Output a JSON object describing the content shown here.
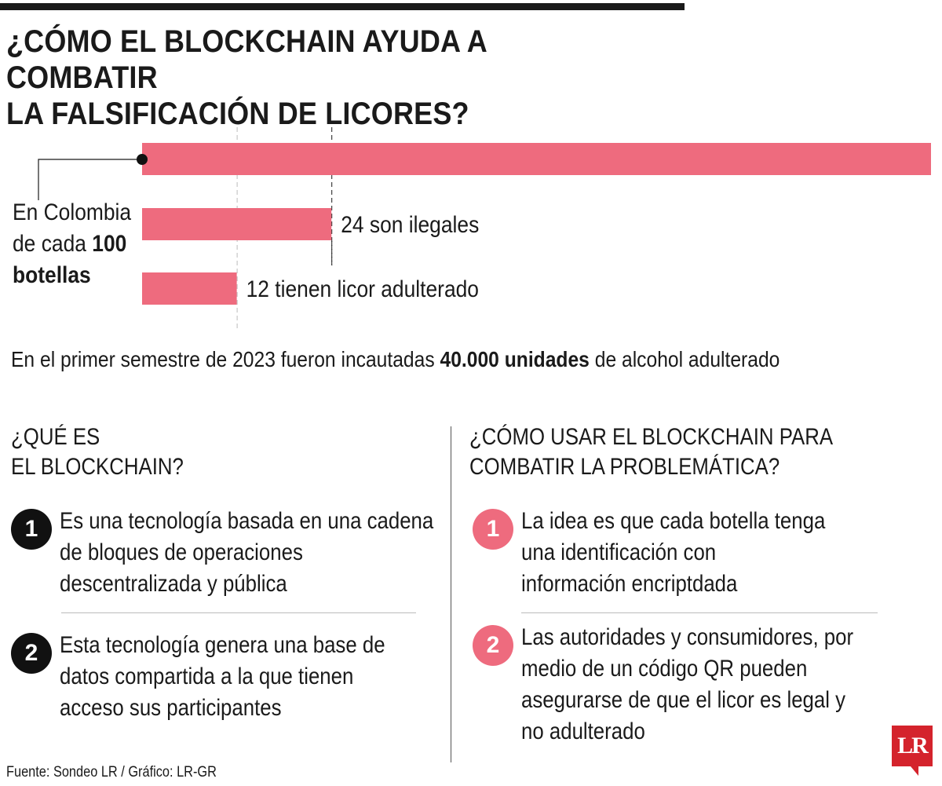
{
  "title": [
    "¿CÓMO EL BLOCKCHAIN AYUDA A COMBATIR",
    "LA FALSIFICACIÓN DE LICORES?"
  ],
  "colors": {
    "bar": "#ee6b7e",
    "dark": "#111111",
    "brand_red": "#d4232c"
  },
  "chart_data": {
    "type": "bar",
    "orientation": "horizontal",
    "title": "",
    "group_label": [
      "En Colombia",
      "de cada ",
      "100",
      "botellas"
    ],
    "values": [
      100,
      24,
      12
    ],
    "labels": [
      "",
      "24 son ilegales",
      "12  tienen licor adulterado"
    ],
    "reference_lines": [
      12,
      24
    ],
    "xlim": [
      0,
      100
    ]
  },
  "stat": {
    "before": "En el primer semestre de 2023 fueron incautadas ",
    "bold": "40.000 unidades",
    "after": " de alcohol adulterado"
  },
  "left_section": {
    "heading": [
      "¿QUÉ ES",
      "EL BLOCKCHAIN?"
    ],
    "items": [
      {
        "number": "1",
        "lines": [
          "Es una tecnología basada en una cadena",
          "de bloques de operaciones",
          "descentralizada y pública"
        ]
      },
      {
        "number": "2",
        "lines": [
          "Esta tecnología genera una base de",
          "datos compartida a la que tienen",
          "acceso sus participantes"
        ]
      }
    ]
  },
  "right_section": {
    "heading": [
      "¿CÓMO USAR EL BLOCKCHAIN PARA",
      "COMBATIR LA PROBLEMÁTICA?"
    ],
    "items": [
      {
        "number": "1",
        "lines": [
          "La idea es que cada botella tenga",
          "una identificación con",
          "información encriptdada"
        ]
      },
      {
        "number": "2",
        "lines": [
          "Las autoridades y consumidores, por",
          "medio de un código QR pueden",
          "asegurarse de que el licor es legal y",
          "no adulterado"
        ]
      }
    ]
  },
  "source": "Fuente: Sondeo LR / Gráfico: LR-GR",
  "logo": "LR"
}
